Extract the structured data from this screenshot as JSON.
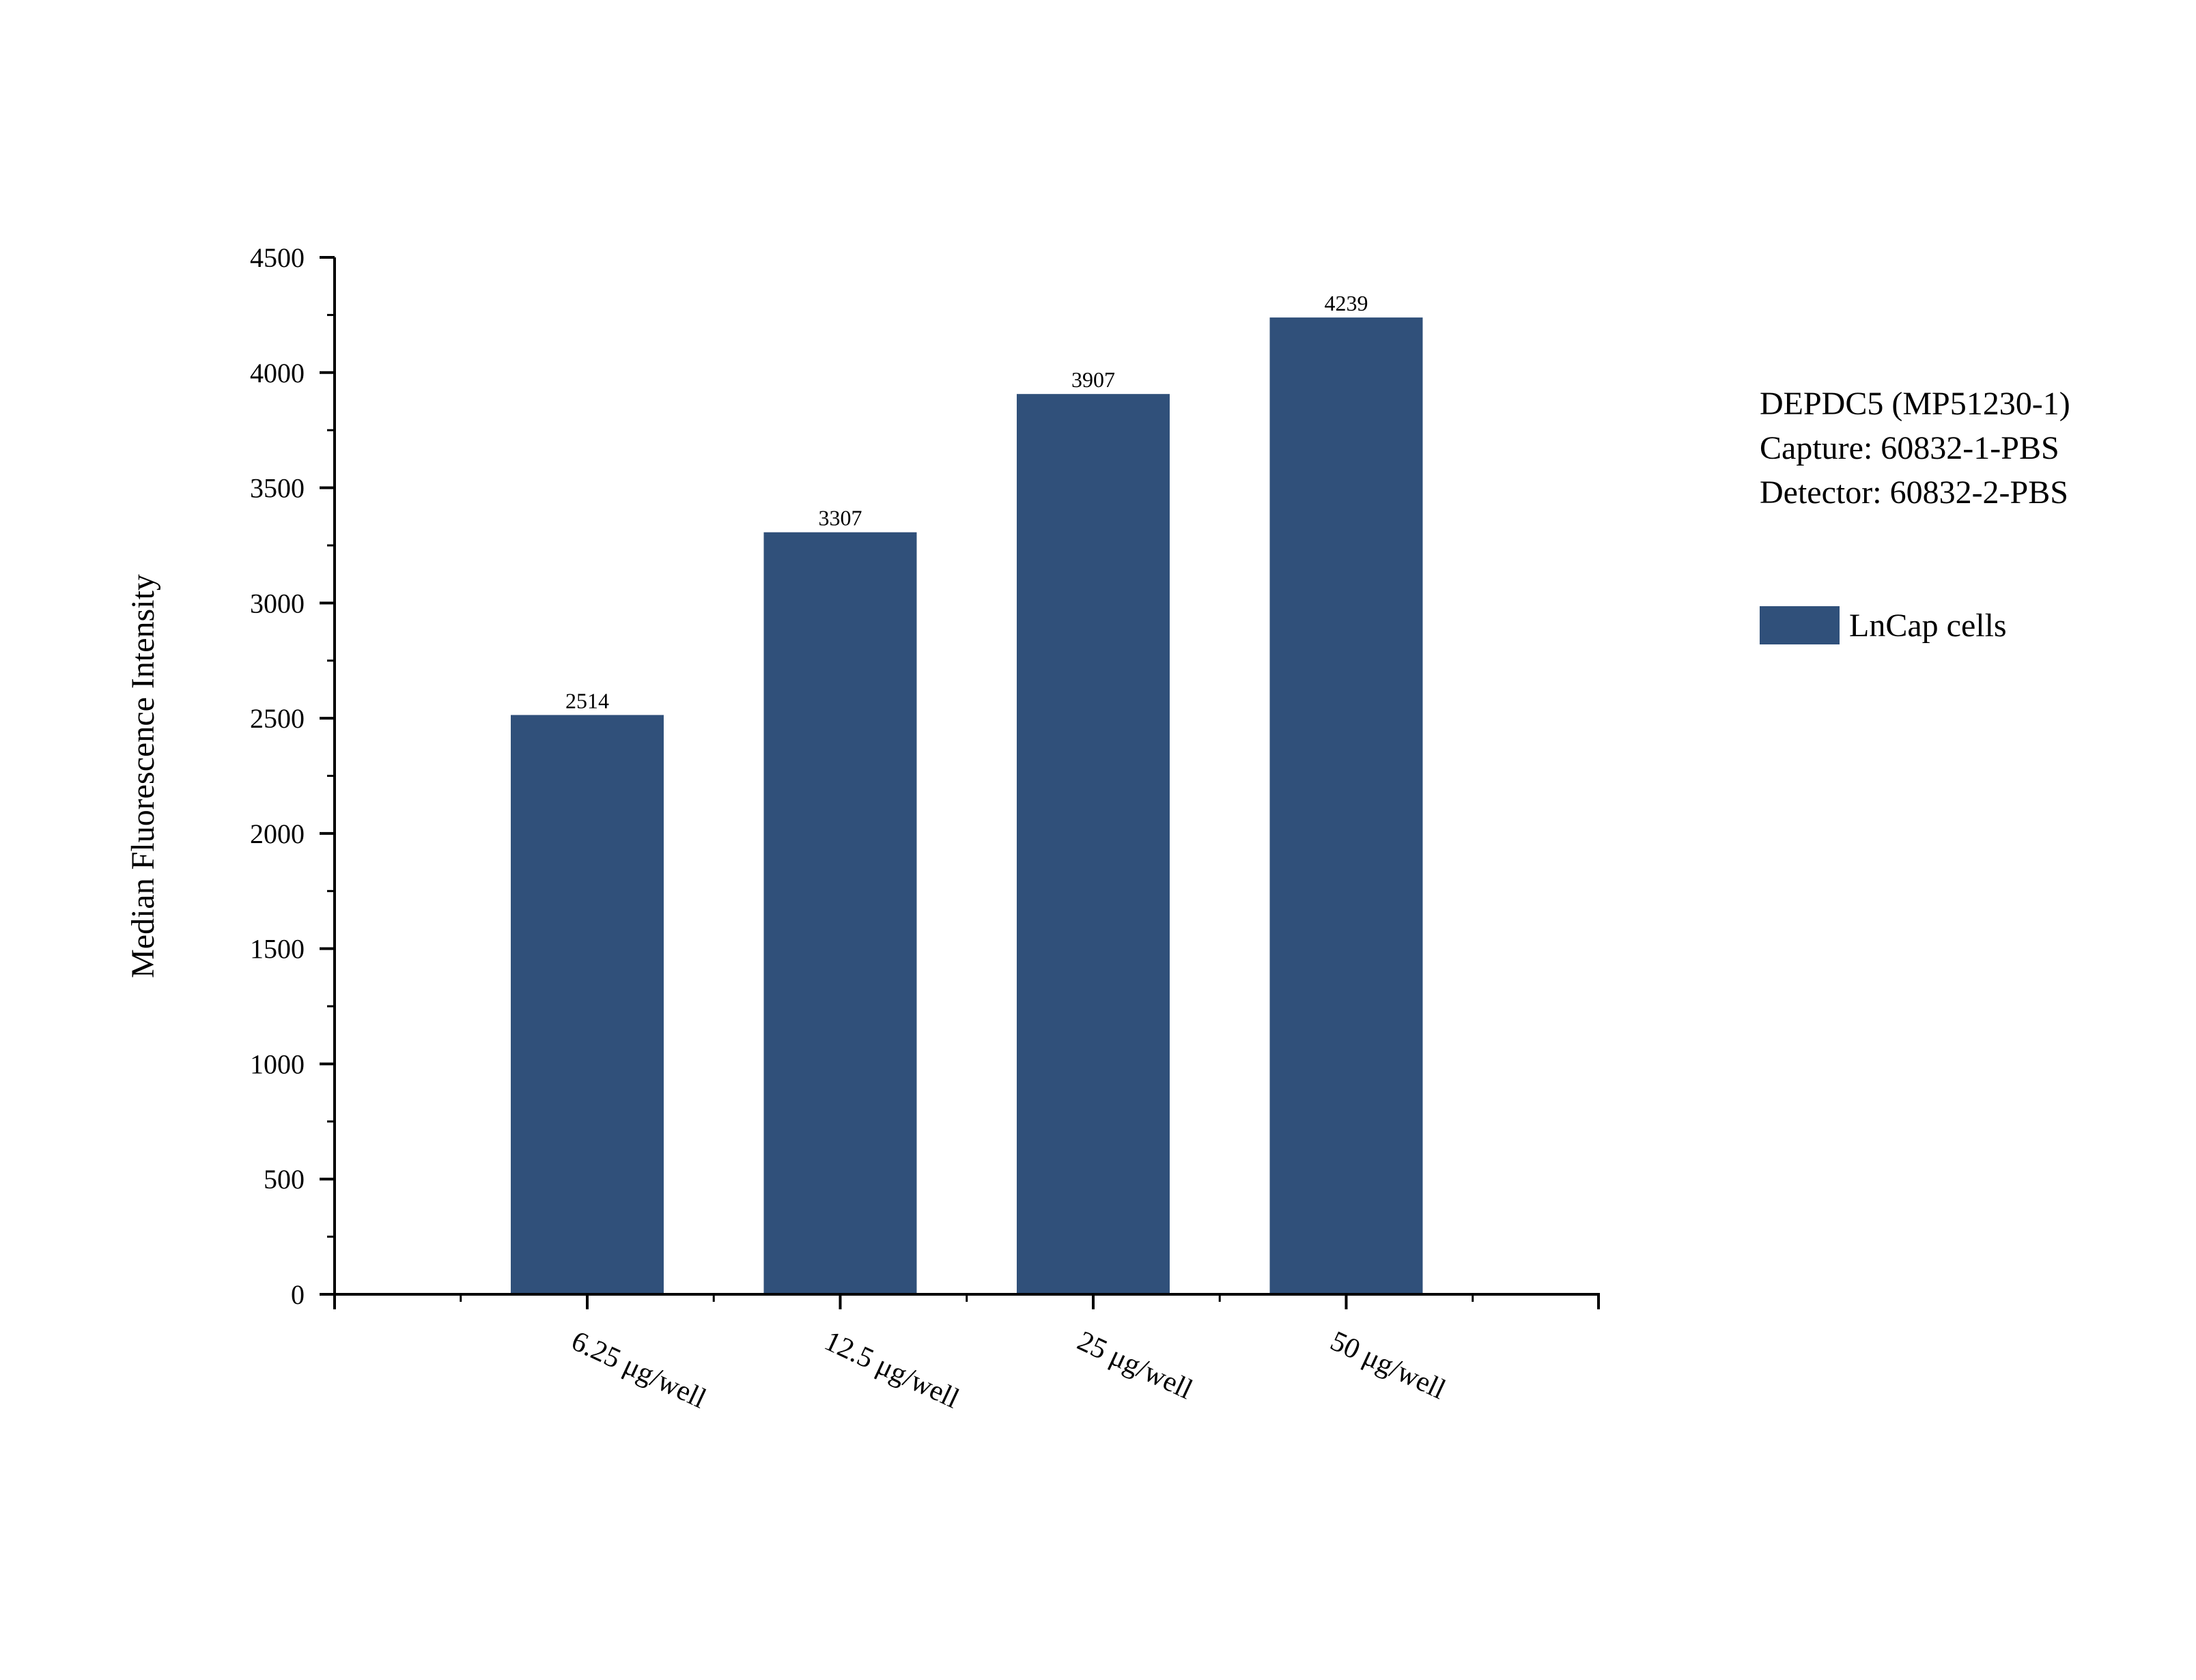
{
  "chart_data": {
    "type": "bar",
    "categories": [
      "6.25 μg/well",
      "12.5 μg/well",
      "25 μg/well",
      "50 μg/well"
    ],
    "series": [
      {
        "name": "LnCap cells",
        "values": [
          2514,
          3307,
          3907,
          4239
        ],
        "color": "#30507a"
      }
    ],
    "data_labels": [
      "2514",
      "3307",
      "3907",
      "4239"
    ],
    "ylabel": "Median Fluorescence Intensity",
    "xlabel": "",
    "ylim": [
      0,
      4500
    ],
    "yticks": [
      0,
      500,
      1000,
      1500,
      2000,
      2500,
      3000,
      3500,
      4000,
      4500
    ],
    "grid": false,
    "legend_position": "right",
    "info_lines": [
      "DEPDC5 (MP51230-1)",
      "Capture: 60832-1-PBS",
      "Detector: 60832-2-PBS"
    ]
  }
}
